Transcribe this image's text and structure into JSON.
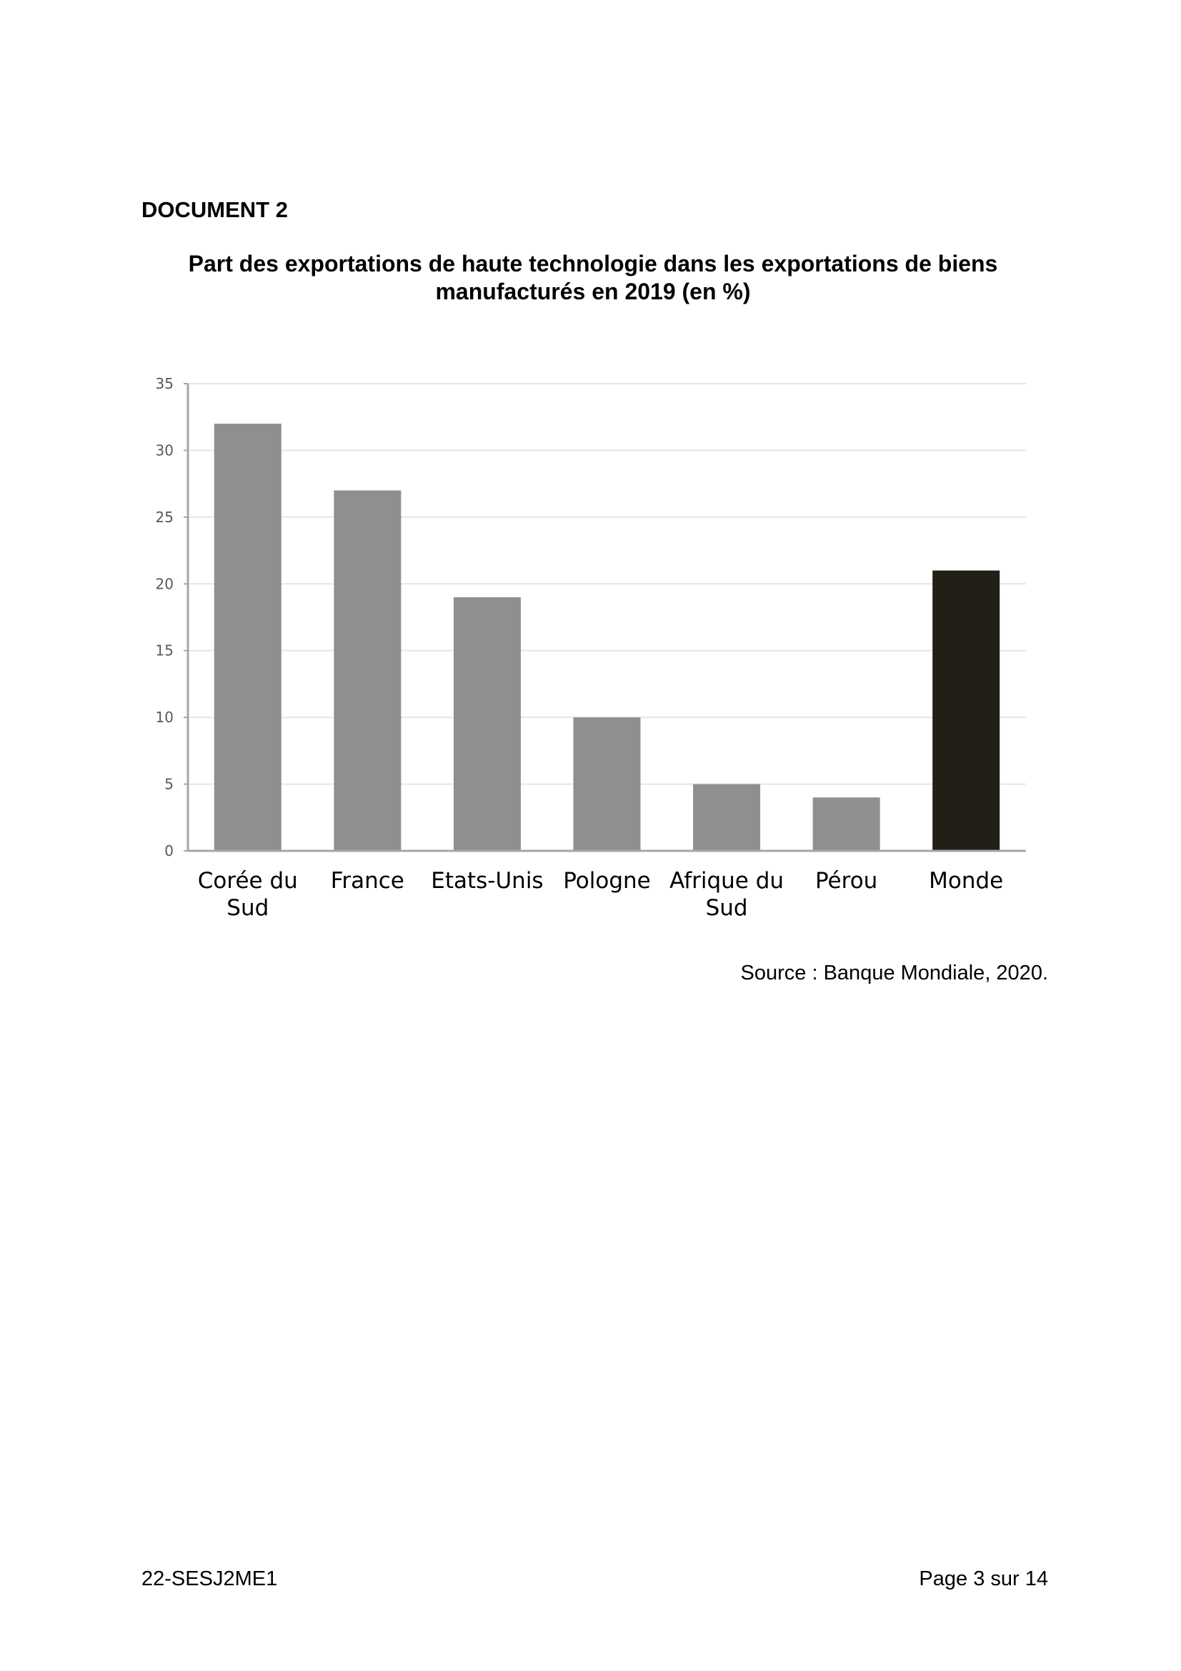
{
  "document": {
    "label": "DOCUMENT 2",
    "source": "Source : Banque Mondiale, 2020."
  },
  "chart_data": {
    "type": "bar",
    "title_lines": [
      "Part des exportations de haute technologie dans les exportations de biens",
      "manufacturés en 2019 (en %)"
    ],
    "categories": [
      [
        "Corée du",
        "Sud"
      ],
      [
        "France"
      ],
      [
        "Etats-Unis"
      ],
      [
        "Pologne"
      ],
      [
        "Afrique du",
        "Sud"
      ],
      [
        "Pérou"
      ],
      [
        "Monde"
      ]
    ],
    "values": [
      32,
      27,
      19,
      10,
      5,
      4,
      21
    ],
    "bar_colors": [
      "#8f8f8f",
      "#8f8f8f",
      "#8f8f8f",
      "#8f8f8f",
      "#8f8f8f",
      "#8f8f8f",
      "#211f16"
    ],
    "ylim": [
      0,
      35
    ],
    "yticks": [
      0,
      5,
      10,
      15,
      20,
      25,
      30,
      35
    ],
    "grid": true,
    "legend": "none"
  },
  "footer": {
    "code": "22-SESJ2ME1",
    "page": "Page 3 sur 14"
  }
}
